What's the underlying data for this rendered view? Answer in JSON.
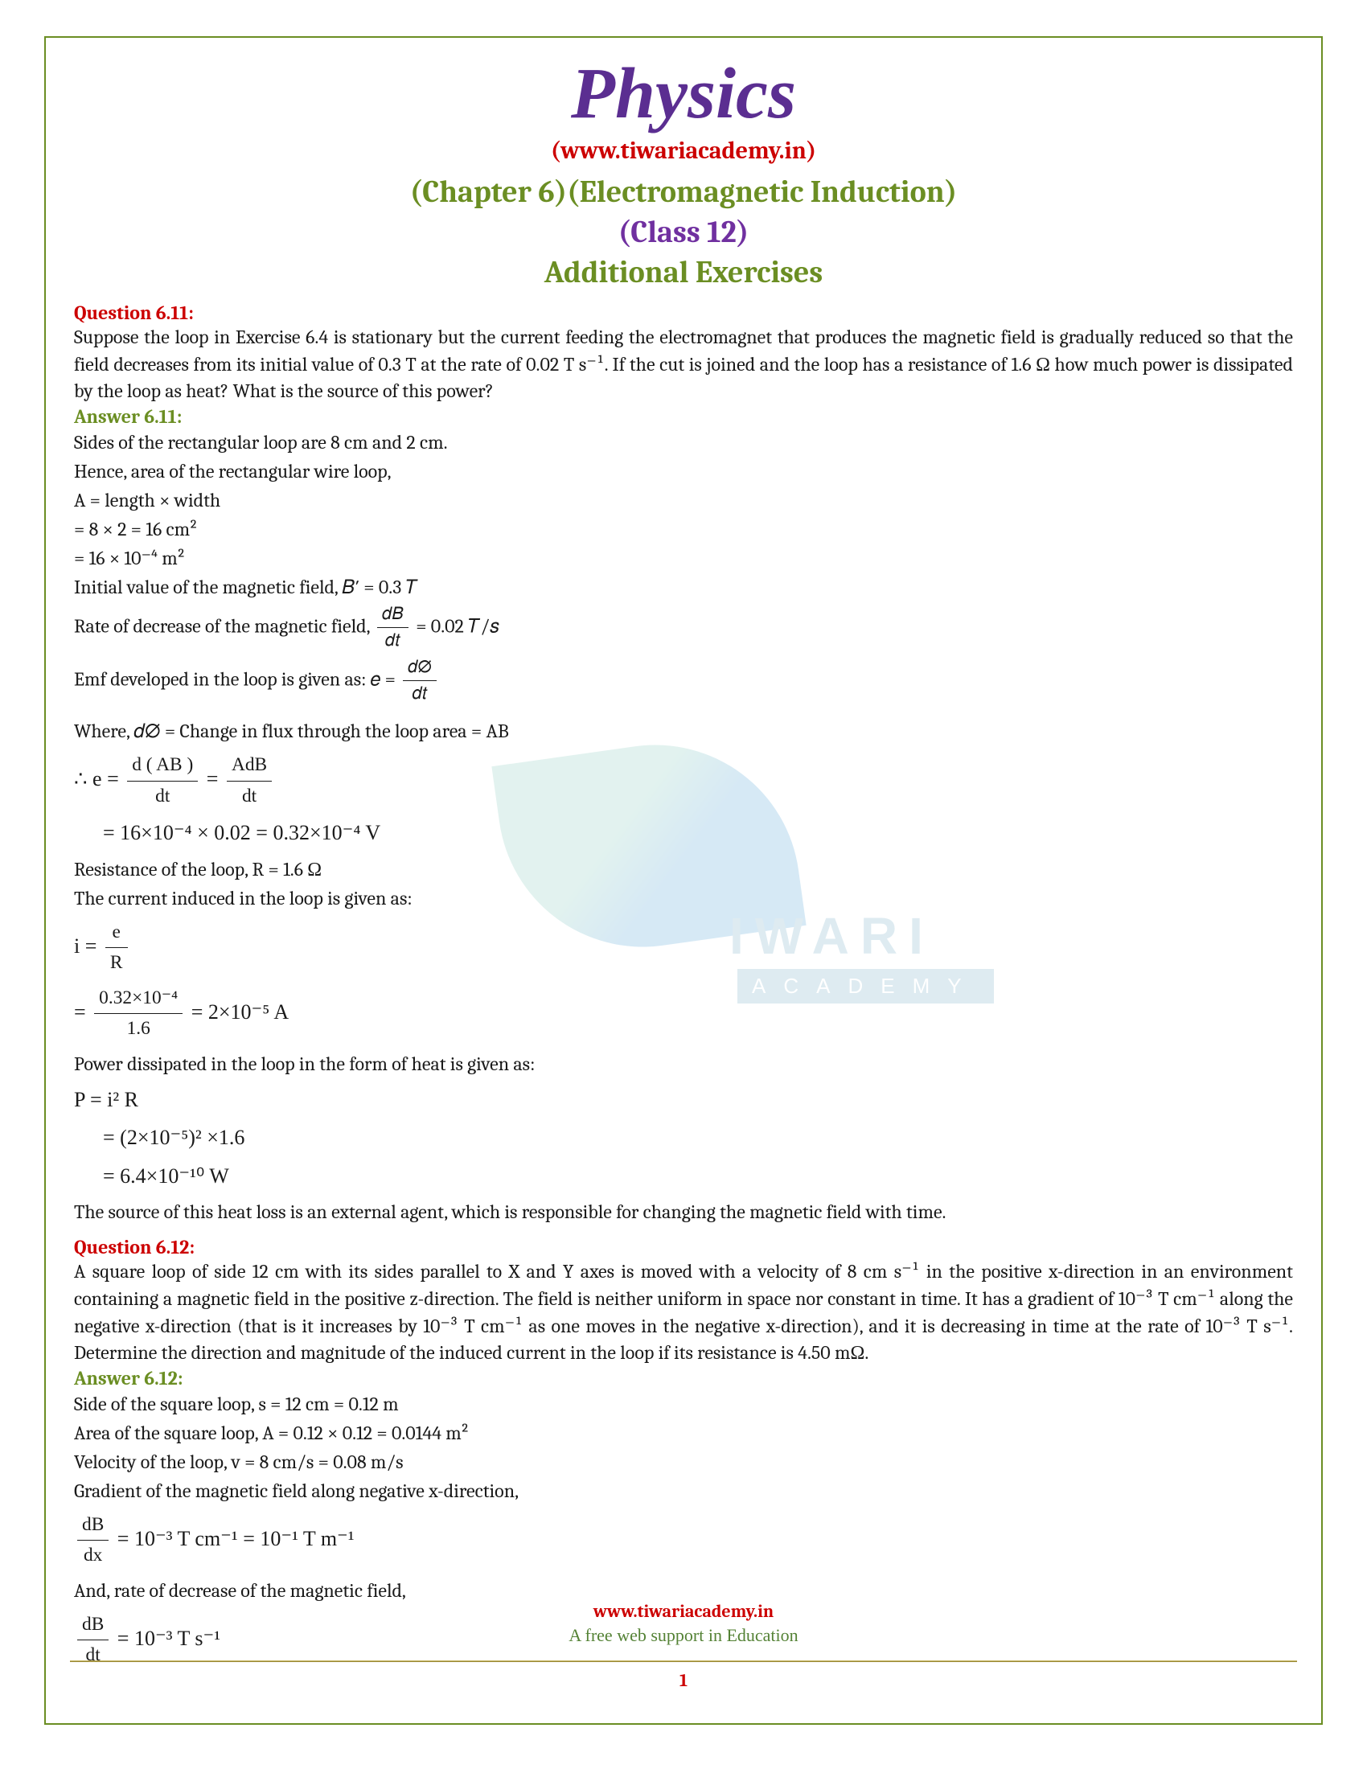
{
  "header": {
    "title": "Physics",
    "link": "(www.tiwariacademy.in)",
    "chapter": "(Chapter 6)(Electromagnetic Induction)",
    "class_label": "(Class 12)",
    "section": "Additional Exercises"
  },
  "q611": {
    "label": "Question 6.11:",
    "text": "Suppose the loop in Exercise 6.4 is stationary but the current feeding the electromagnet that produces the magnetic field is gradually reduced so that the field decreases from its initial value of 0.3 T at the rate of 0.02 T s⁻¹. If the cut is joined and the loop has a resistance of 1.6 Ω how much power is dissipated by the loop as heat? What is the source of this power?",
    "answer_label": "Answer 6.11:",
    "l1": "Sides of the rectangular loop are 8 cm and 2 cm.",
    "l2": "Hence, area of the rectangular wire loop,",
    "l3": "A = length × width",
    "l4": "= 8 × 2 = 16 cm²",
    "l5": "= 16 × 10⁻⁴ m²",
    "l6": "Initial value of the magnetic field, 𝐵′ = 0.3 𝑇",
    "l7a": "Rate of decrease of the magnetic field, ",
    "l7b": " = 0.02 𝑇/𝑠",
    "l8a": "Emf developed in the loop is given as: 𝑒 = ",
    "l9": "Where,  𝑑∅ = Change in flux through the loop area = AB",
    "m1a": "∴ e = ",
    "m1_n1": "d ( AB )",
    "m1_d1": "dt",
    "m1b": " = ",
    "m1_n2": "AdB",
    "m1_d2": "dt",
    "m2": "= 16×10⁻⁴ × 0.02 = 0.32×10⁻⁴  V",
    "l10": "Resistance of the loop, R = 1.6 Ω",
    "l11": "The current induced in the loop is given as:",
    "m3a": "i = ",
    "m3n": "e",
    "m3d": "R",
    "m4a": "= ",
    "m4n": "0.32×10⁻⁴",
    "m4d": "1.6",
    "m4b": " = 2×10⁻⁵  A",
    "l12": "Power dissipated in the loop in the form of heat is given as:",
    "m5": "P = i² R",
    "m6": "= (2×10⁻⁵)² ×1.6",
    "m7": "= 6.4×10⁻¹⁰  W",
    "l13": "The source of this heat loss is an external agent, which is responsible for changing the magnetic field with time."
  },
  "q612": {
    "label": "Question 6.12:",
    "text": "A square loop of side 12 cm with its sides parallel to X and Y axes is moved with a velocity of 8 cm s⁻¹ in the positive x-direction in an environment containing a magnetic field in the positive z-direction. The field is neither uniform in space nor constant in time. It has a gradient of 10⁻³ T cm⁻¹ along the negative x-direction (that is it increases by 10⁻³ T cm⁻¹ as one moves in the negative x-direction), and it is decreasing in time at the rate of 10⁻³ T s⁻¹. Determine the direction and magnitude of the induced current in the loop if its resistance is 4.50 mΩ.",
    "answer_label": "Answer 6.12:",
    "l1": "Side of the square loop, s = 12 cm = 0.12 m",
    "l2": "Area of the square loop, A = 0.12 × 0.12 = 0.0144 m²",
    "l3": "Velocity of the loop, v = 8 cm/s = 0.08 m/s",
    "l4": "Gradient of the magnetic field along negative x-direction,",
    "m1n": "dB",
    "m1d": "dx",
    "m1b": " = 10⁻³  T cm⁻¹ = 10⁻¹  T m⁻¹",
    "l5": "And, rate of decrease of the magnetic field,",
    "m2n": "dB",
    "m2d": "dt",
    "m2b": " = 10⁻³  T s⁻¹"
  },
  "footer": {
    "link": "www.tiwariacademy.in",
    "tagline": "A free web support in Education",
    "page": "1"
  },
  "watermark": {
    "t1": "IWARI",
    "t2": "ACADEMY"
  },
  "colors": {
    "border": "#6b8e23",
    "title": "#5b2e91",
    "red": "#cc0000",
    "green": "#6b8e23",
    "purple": "#7030a0",
    "text": "#1a1a1a",
    "footer_green": "#548235"
  }
}
